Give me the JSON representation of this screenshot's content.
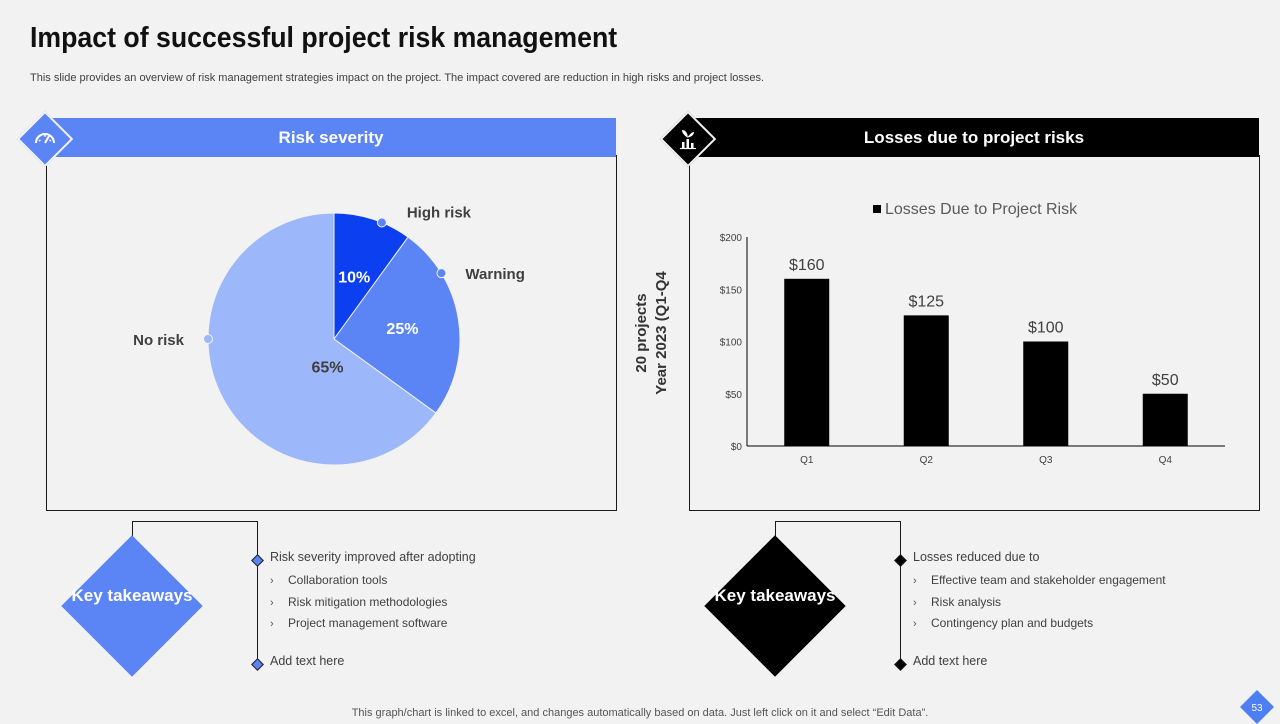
{
  "page": {
    "title": "Impact of successful project risk management",
    "subtitle": "This slide provides an overview of risk management strategies impact on the project. The impact covered are reduction in high risks and project losses.",
    "footer_note": "This graph/chart is linked to excel,  and changes automatically based on data. Just left click on it and select “Edit Data”.",
    "page_number": "53"
  },
  "left_panel": {
    "header": "Risk severity",
    "icon": "gauge-icon",
    "color": "#5b85f5"
  },
  "right_panel": {
    "header": "Losses due to project risks",
    "icon": "money-plant-chart-icon",
    "side_label_line1": "20 projects",
    "side_label_line2": "Year 2023 (Q1-Q4"
  },
  "chart_data": [
    {
      "type": "pie",
      "categories": [
        "High risk",
        "Warning",
        "No risk"
      ],
      "values": [
        10,
        25,
        65
      ],
      "value_labels": [
        "10%",
        "25%",
        "65%"
      ],
      "colors": [
        "#0b3ff0",
        "#5b85f5",
        "#9db7fb"
      ]
    },
    {
      "type": "bar",
      "categories": [
        "Q1",
        "Q2",
        "Q3",
        "Q4"
      ],
      "series": [
        {
          "name": "Losses Due to Project Risk",
          "values": [
            160,
            125,
            100,
            50
          ],
          "color": "#000000"
        }
      ],
      "data_labels": [
        "$160",
        "$125",
        "$100",
        "$50"
      ],
      "y_ticks": [
        "$0",
        "$50",
        "$100",
        "$150",
        "$200"
      ],
      "ylim": [
        0,
        200
      ],
      "legend_position": "top",
      "grid": false
    }
  ],
  "takeaways_left": {
    "label": "Key takeaways",
    "color": "#5b85f5",
    "heading": "Risk severity improved  after adopting",
    "items": [
      "Collaboration tools",
      "Risk mitigation methodologies",
      "Project management software"
    ],
    "add_text": "Add text here"
  },
  "takeaways_right": {
    "label": "Key takeaways",
    "color": "#000000",
    "heading": "Losses reduced due to",
    "items": [
      "Effective team and stakeholder engagement",
      "Risk analysis",
      "Contingency plan and budgets"
    ],
    "add_text": "Add text here"
  }
}
